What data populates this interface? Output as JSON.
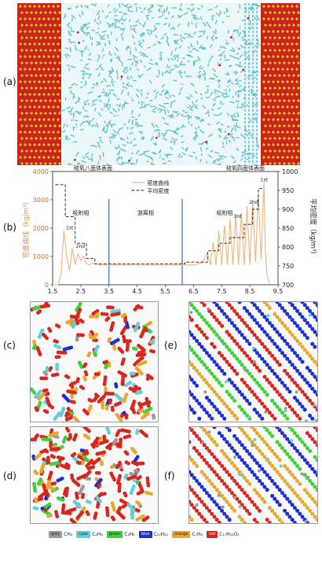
{
  "labels": {
    "a": "(a)",
    "b": "(b)",
    "c": "(c)",
    "d": "(d)",
    "e": "(e)",
    "f": "(f)"
  },
  "snapshot": {
    "left_label": "硅氧八面体表面",
    "right_label": "硅氧四面体表面",
    "colors": {
      "surface_red": "#c8231c",
      "surface_yellow": "#e8c820",
      "hydrocarbon": "#5fc0c7",
      "hydrogen": "#e8f4f5"
    }
  },
  "chart_data": {
    "type": "line",
    "xlabel": "距离(nm)",
    "ylabel_left": "密度曲线（kg/m³）",
    "ylabel_right": "平均密度（kg/m³）",
    "xlim": [
      1.5,
      9.5
    ],
    "ylim_left": [
      0,
      4000
    ],
    "ylim_right": [
      700,
      1000
    ],
    "x_ticks": [
      "1.5",
      "2.5",
      "3.5",
      "4.5",
      "5.5",
      "6.5",
      "7.5",
      "8.5",
      "9.5"
    ],
    "y_left_ticks": [
      "0",
      "1000",
      "2000",
      "3000",
      "4000"
    ],
    "y_right_ticks": [
      "700",
      "750",
      "800",
      "850",
      "900",
      "950",
      "1000"
    ],
    "legend": [
      "密度曲线",
      "平均密度"
    ],
    "regions": [
      "吸附相",
      "游离相",
      "吸附相"
    ],
    "region_dividers": [
      3.5,
      6.1
    ],
    "layer_labels": [
      "1st",
      "2nd",
      "1st",
      "2nd",
      "3rd"
    ],
    "series": [
      {
        "name": "密度曲线",
        "color": "#f0b47a",
        "x": [
          1.5,
          1.7,
          1.8,
          1.9,
          1.95,
          2.0,
          2.1,
          2.2,
          2.3,
          2.4,
          2.5,
          2.6,
          2.7,
          2.8,
          2.9,
          3.0,
          3.2,
          3.5,
          4.0,
          4.5,
          5.0,
          5.5,
          6.0,
          6.5,
          6.8,
          7.0,
          7.1,
          7.2,
          7.3,
          7.4,
          7.5,
          7.6,
          7.7,
          7.8,
          7.9,
          8.0,
          8.1,
          8.2,
          8.3,
          8.4,
          8.5,
          8.6,
          8.7,
          8.8,
          8.9,
          9.0,
          9.05,
          9.1,
          9.2
        ],
        "y": [
          0,
          0,
          400,
          1900,
          1500,
          1000,
          500,
          1300,
          700,
          1100,
          850,
          1000,
          750,
          700,
          760,
          740,
          700,
          700,
          700,
          700,
          700,
          700,
          700,
          700,
          780,
          1100,
          700,
          1500,
          700,
          1900,
          700,
          2100,
          700,
          2300,
          700,
          2450,
          700,
          2550,
          700,
          2750,
          700,
          3000,
          800,
          3200,
          900,
          3600,
          1200,
          400,
          0
        ]
      },
      {
        "name": "平均密度",
        "color": "#222222",
        "x": [
          1.6,
          1.95,
          1.95,
          2.3,
          2.3,
          2.7,
          2.7,
          3.0,
          3.0,
          6.2,
          6.2,
          7.0,
          7.0,
          7.4,
          7.4,
          7.8,
          7.8,
          8.3,
          8.3,
          8.6,
          8.6,
          8.8,
          8.8,
          9.0
        ],
        "y": [
          965,
          965,
          880,
          880,
          810,
          810,
          770,
          770,
          755,
          755,
          760,
          760,
          790,
          790,
          810,
          810,
          825,
          825,
          860,
          860,
          900,
          900,
          955,
          955
        ]
      }
    ]
  },
  "snapshots": [
    "c",
    "d",
    "e",
    "f"
  ],
  "legend": [
    {
      "color_word": "grey",
      "formula": "CH₄",
      "color": "#9a9a9a"
    },
    {
      "color_word": "cyan",
      "formula": "C₂H₆",
      "color": "#5fd0d8"
    },
    {
      "color_word": "green",
      "formula": "C₃H₈",
      "color": "#3ed23a"
    },
    {
      "color_word": "blue",
      "formula": "C₁₀H₂₂",
      "color": "#1c2fd0"
    },
    {
      "color_word": "orange",
      "formula": "C₇H₈",
      "color": "#e8a830"
    },
    {
      "color_word": "red",
      "formula": "C₁₇H₃₂O₂",
      "color": "#d8261f"
    }
  ]
}
